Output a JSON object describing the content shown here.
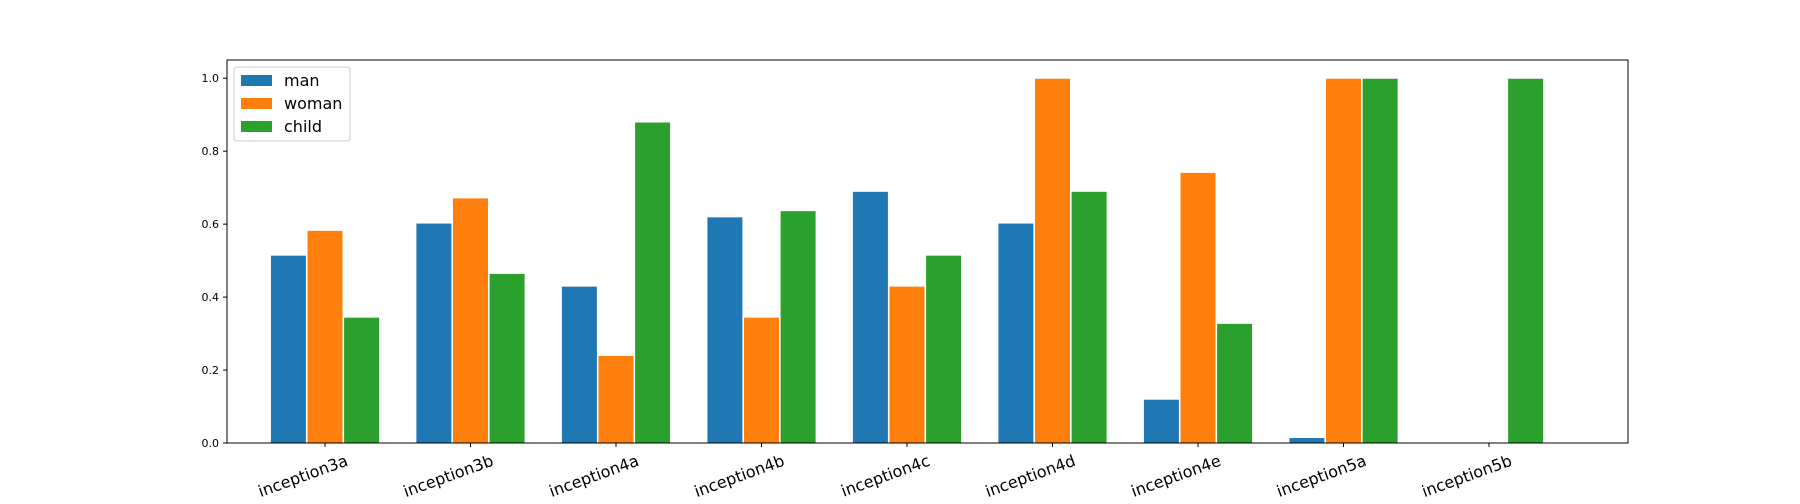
{
  "chart_data": {
    "type": "bar",
    "categories": [
      "inception3a",
      "inception3b",
      "inception4a",
      "inception4b",
      "inception4c",
      "inception4d",
      "inception4e",
      "inception5a",
      "inception5b"
    ],
    "series": [
      {
        "name": "man",
        "color": "#1f77b4",
        "values": [
          0.515,
          0.603,
          0.43,
          0.62,
          0.69,
          0.603,
          0.12,
          0.015,
          0.0
        ]
      },
      {
        "name": "woman",
        "color": "#ff7f0e",
        "values": [
          0.583,
          0.672,
          0.24,
          0.345,
          0.43,
          1.0,
          0.742,
          1.0,
          0.0
        ]
      },
      {
        "name": "child",
        "color": "#2ca02c",
        "values": [
          0.345,
          0.465,
          0.88,
          0.637,
          0.515,
          0.69,
          0.328,
          1.0,
          1.0
        ]
      }
    ],
    "yticks": [
      "0.0",
      "0.2",
      "0.4",
      "0.6",
      "0.8",
      "1.0"
    ],
    "ylim": [
      0,
      1.05
    ],
    "xlabel": "",
    "ylabel": "",
    "title": "",
    "grid": false,
    "legend_position": "top-left"
  }
}
